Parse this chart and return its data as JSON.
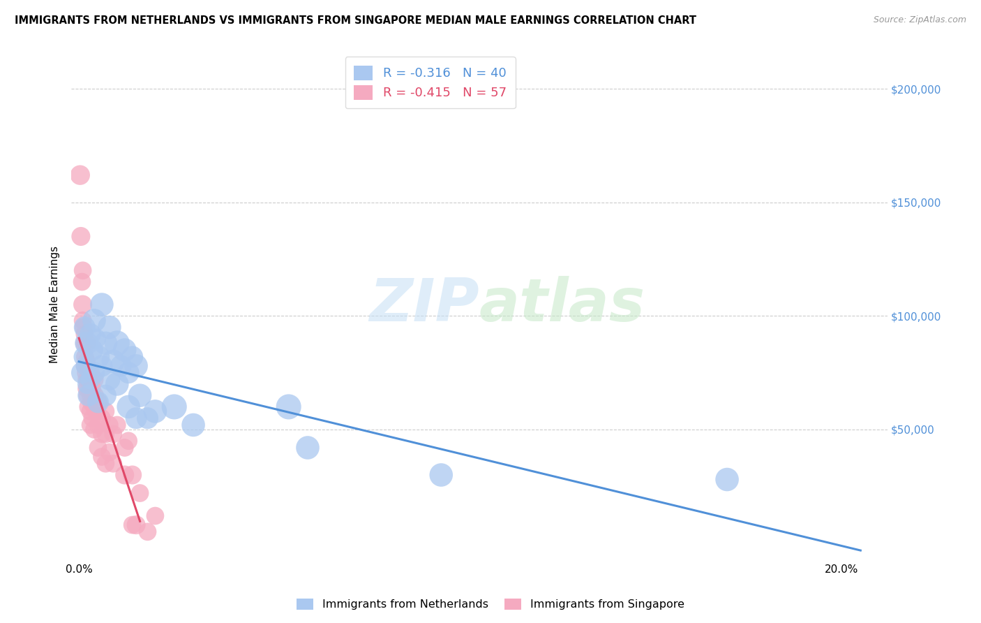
{
  "title": "IMMIGRANTS FROM NETHERLANDS VS IMMIGRANTS FROM SINGAPORE MEDIAN MALE EARNINGS CORRELATION CHART",
  "source": "Source: ZipAtlas.com",
  "ylabel": "Median Male Earnings",
  "xlim": [
    -0.002,
    0.212
  ],
  "ylim": [
    -8000,
    218000
  ],
  "color_netherlands": "#aac8f0",
  "color_singapore": "#f5aac0",
  "color_trendline_netherlands": "#5090d8",
  "color_trendline_singapore": "#e04868",
  "watermark_zip": "ZIP",
  "watermark_atlas": "atlas",
  "legend_nl_r": "R = -0.316",
  "legend_nl_n": "N = 40",
  "legend_sg_r": "R = -0.415",
  "legend_sg_n": "N = 57",
  "netherlands_data": [
    [
      0.0008,
      75000,
      18
    ],
    [
      0.0012,
      82000,
      16
    ],
    [
      0.0015,
      95000,
      18
    ],
    [
      0.0018,
      78000,
      16
    ],
    [
      0.002,
      88000,
      20
    ],
    [
      0.0022,
      70000,
      16
    ],
    [
      0.0025,
      65000,
      18
    ],
    [
      0.003,
      92000,
      18
    ],
    [
      0.003,
      72000,
      16
    ],
    [
      0.0035,
      85000,
      18
    ],
    [
      0.004,
      98000,
      20
    ],
    [
      0.004,
      75000,
      18
    ],
    [
      0.0045,
      90000,
      16
    ],
    [
      0.005,
      82000,
      20
    ],
    [
      0.005,
      62000,
      18
    ],
    [
      0.006,
      105000,
      20
    ],
    [
      0.006,
      78000,
      18
    ],
    [
      0.007,
      88000,
      20
    ],
    [
      0.007,
      65000,
      18
    ],
    [
      0.008,
      95000,
      20
    ],
    [
      0.008,
      72000,
      18
    ],
    [
      0.009,
      80000,
      20
    ],
    [
      0.01,
      88000,
      22
    ],
    [
      0.01,
      70000,
      20
    ],
    [
      0.011,
      78000,
      18
    ],
    [
      0.012,
      85000,
      20
    ],
    [
      0.013,
      75000,
      18
    ],
    [
      0.013,
      60000,
      20
    ],
    [
      0.014,
      82000,
      18
    ],
    [
      0.015,
      78000,
      20
    ],
    [
      0.015,
      55000,
      18
    ],
    [
      0.016,
      65000,
      20
    ],
    [
      0.018,
      55000,
      18
    ],
    [
      0.02,
      58000,
      20
    ],
    [
      0.025,
      60000,
      22
    ],
    [
      0.03,
      52000,
      20
    ],
    [
      0.055,
      60000,
      22
    ],
    [
      0.06,
      42000,
      20
    ],
    [
      0.095,
      30000,
      20
    ],
    [
      0.17,
      28000,
      20
    ]
  ],
  "singapore_data": [
    [
      0.0003,
      162000,
      16
    ],
    [
      0.0005,
      135000,
      15
    ],
    [
      0.0008,
      115000,
      14
    ],
    [
      0.001,
      105000,
      15
    ],
    [
      0.001,
      120000,
      14
    ],
    [
      0.001,
      98000,
      14
    ],
    [
      0.0012,
      95000,
      14
    ],
    [
      0.0014,
      88000,
      14
    ],
    [
      0.0015,
      92000,
      14
    ],
    [
      0.0015,
      78000,
      14
    ],
    [
      0.0016,
      82000,
      14
    ],
    [
      0.0018,
      75000,
      14
    ],
    [
      0.002,
      88000,
      15
    ],
    [
      0.002,
      80000,
      14
    ],
    [
      0.002,
      72000,
      14
    ],
    [
      0.002,
      68000,
      14
    ],
    [
      0.0022,
      78000,
      14
    ],
    [
      0.0022,
      65000,
      14
    ],
    [
      0.0024,
      72000,
      14
    ],
    [
      0.0024,
      60000,
      14
    ],
    [
      0.0026,
      68000,
      14
    ],
    [
      0.003,
      75000,
      15
    ],
    [
      0.003,
      65000,
      14
    ],
    [
      0.003,
      58000,
      14
    ],
    [
      0.003,
      52000,
      14
    ],
    [
      0.0032,
      70000,
      14
    ],
    [
      0.0032,
      62000,
      14
    ],
    [
      0.0035,
      68000,
      14
    ],
    [
      0.0035,
      55000,
      14
    ],
    [
      0.004,
      72000,
      15
    ],
    [
      0.004,
      60000,
      14
    ],
    [
      0.004,
      50000,
      14
    ],
    [
      0.0042,
      65000,
      14
    ],
    [
      0.0045,
      58000,
      14
    ],
    [
      0.005,
      62000,
      15
    ],
    [
      0.005,
      52000,
      14
    ],
    [
      0.005,
      42000,
      14
    ],
    [
      0.006,
      55000,
      14
    ],
    [
      0.006,
      48000,
      14
    ],
    [
      0.006,
      38000,
      14
    ],
    [
      0.007,
      58000,
      14
    ],
    [
      0.007,
      48000,
      14
    ],
    [
      0.007,
      35000,
      14
    ],
    [
      0.008,
      52000,
      14
    ],
    [
      0.008,
      40000,
      14
    ],
    [
      0.009,
      48000,
      14
    ],
    [
      0.009,
      35000,
      14
    ],
    [
      0.01,
      52000,
      14
    ],
    [
      0.012,
      42000,
      14
    ],
    [
      0.012,
      30000,
      15
    ],
    [
      0.013,
      45000,
      14
    ],
    [
      0.014,
      30000,
      15
    ],
    [
      0.014,
      8000,
      14
    ],
    [
      0.015,
      8000,
      15
    ],
    [
      0.016,
      22000,
      14
    ],
    [
      0.018,
      5000,
      14
    ],
    [
      0.02,
      12000,
      14
    ]
  ]
}
